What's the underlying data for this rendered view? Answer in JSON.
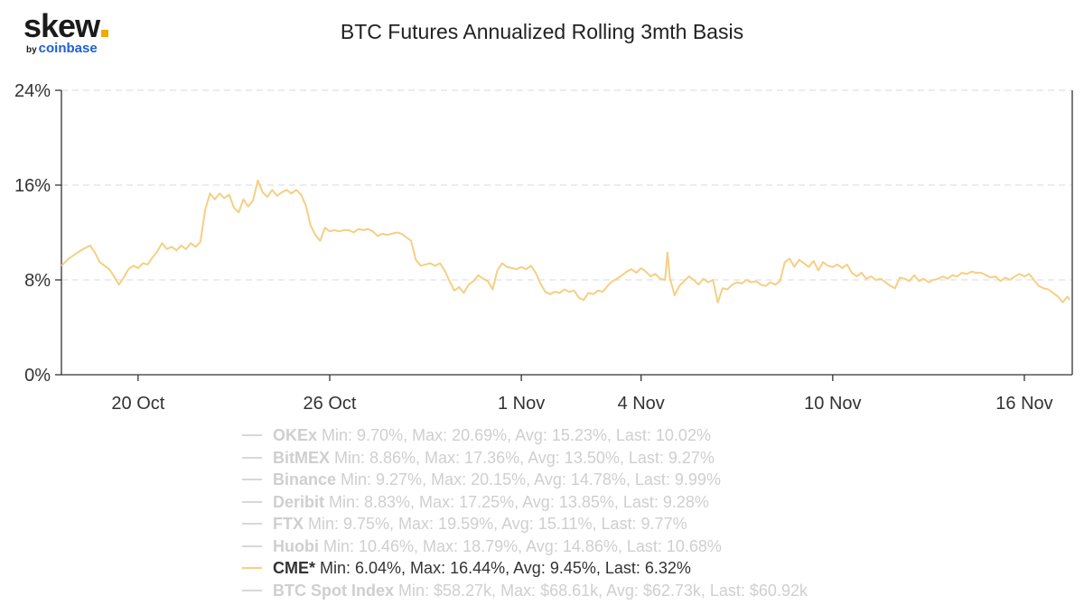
{
  "brand": {
    "word": "skew",
    "by": "by",
    "sub": "coinbase",
    "dot_color": "#f2a900"
  },
  "chart_data": {
    "type": "line",
    "title": "BTC Futures Annualized Rolling 3mth Basis",
    "xlabel": "",
    "ylabel": "",
    "ylim": [
      0,
      24
    ],
    "y_ticks": [
      "0%",
      "8%",
      "16%",
      "24%"
    ],
    "x_ticks": [
      "20 Oct",
      "26 Oct",
      "1 Nov",
      "4 Nov",
      "10 Nov",
      "16 Nov"
    ],
    "grid": true,
    "legend_position": "bottom",
    "series": [
      {
        "name": "OKEx",
        "stats": "Min: 9.70%, Max: 20.69%, Avg: 15.23%, Last: 10.02%",
        "visible": false
      },
      {
        "name": "BitMEX",
        "stats": "Min: 8.86%, Max: 17.36%, Avg: 13.50%, Last: 9.27%",
        "visible": false
      },
      {
        "name": "Binance",
        "stats": "Min: 9.27%, Max: 20.15%, Avg: 14.78%, Last: 9.99%",
        "visible": false
      },
      {
        "name": "Deribit",
        "stats": "Min: 8.83%, Max: 17.25%, Avg: 13.85%, Last: 9.28%",
        "visible": false
      },
      {
        "name": "FTX",
        "stats": "Min: 9.75%, Max: 19.59%, Avg: 15.11%, Last: 9.77%",
        "visible": false
      },
      {
        "name": "Huobi",
        "stats": "Min: 10.46%, Max: 18.79%, Avg: 14.86%, Last: 10.68%",
        "visible": false
      },
      {
        "name": "CME*",
        "stats": "Min: 6.04%, Max: 16.44%, Avg: 9.45%, Last: 6.32%",
        "visible": true,
        "color": "#f5cf83",
        "points": [
          [
            0.0,
            9.2
          ],
          [
            0.3,
            9.8
          ],
          [
            0.6,
            10.2
          ],
          [
            0.9,
            10.6
          ],
          [
            1.2,
            10.9
          ],
          [
            1.4,
            10.3
          ],
          [
            1.6,
            9.5
          ],
          [
            1.8,
            9.2
          ],
          [
            2.0,
            8.9
          ],
          [
            2.2,
            8.3
          ],
          [
            2.4,
            7.6
          ],
          [
            2.6,
            8.2
          ],
          [
            2.8,
            8.9
          ],
          [
            3.0,
            9.2
          ],
          [
            3.2,
            9.0
          ],
          [
            3.4,
            9.4
          ],
          [
            3.6,
            9.3
          ],
          [
            3.8,
            9.9
          ],
          [
            4.0,
            10.4
          ],
          [
            4.2,
            11.1
          ],
          [
            4.4,
            10.6
          ],
          [
            4.6,
            10.8
          ],
          [
            4.8,
            10.5
          ],
          [
            5.0,
            10.9
          ],
          [
            5.2,
            10.6
          ],
          [
            5.4,
            11.1
          ],
          [
            5.6,
            10.8
          ],
          [
            5.8,
            11.2
          ],
          [
            6.0,
            13.9
          ],
          [
            6.2,
            15.3
          ],
          [
            6.4,
            14.8
          ],
          [
            6.6,
            15.3
          ],
          [
            6.8,
            14.9
          ],
          [
            7.0,
            15.2
          ],
          [
            7.2,
            14.1
          ],
          [
            7.4,
            13.7
          ],
          [
            7.6,
            14.8
          ],
          [
            7.8,
            14.2
          ],
          [
            8.0,
            14.7
          ],
          [
            8.2,
            16.4
          ],
          [
            8.4,
            15.4
          ],
          [
            8.6,
            15.0
          ],
          [
            8.8,
            15.6
          ],
          [
            9.0,
            15.1
          ],
          [
            9.2,
            15.4
          ],
          [
            9.4,
            15.6
          ],
          [
            9.6,
            15.3
          ],
          [
            9.8,
            15.6
          ],
          [
            10.0,
            15.2
          ],
          [
            10.2,
            14.3
          ],
          [
            10.4,
            12.6
          ],
          [
            10.6,
            11.8
          ],
          [
            10.8,
            11.3
          ],
          [
            11.0,
            12.4
          ],
          [
            11.2,
            12.1
          ],
          [
            11.4,
            12.2
          ],
          [
            11.6,
            12.1
          ],
          [
            11.8,
            12.2
          ],
          [
            12.0,
            12.2
          ],
          [
            12.2,
            12.0
          ],
          [
            12.4,
            12.3
          ],
          [
            12.6,
            12.2
          ],
          [
            12.8,
            12.3
          ],
          [
            13.0,
            12.1
          ],
          [
            13.2,
            11.7
          ],
          [
            13.4,
            11.9
          ],
          [
            13.6,
            11.8
          ],
          [
            13.8,
            11.9
          ],
          [
            14.0,
            12.0
          ],
          [
            14.2,
            11.9
          ],
          [
            14.4,
            11.6
          ],
          [
            14.6,
            11.3
          ],
          [
            14.8,
            9.7
          ],
          [
            15.0,
            9.2
          ],
          [
            15.2,
            9.3
          ],
          [
            15.4,
            9.4
          ],
          [
            15.6,
            9.2
          ],
          [
            15.8,
            9.4
          ],
          [
            16.0,
            8.8
          ],
          [
            16.2,
            7.9
          ],
          [
            16.4,
            7.1
          ],
          [
            16.6,
            7.4
          ],
          [
            16.8,
            6.9
          ],
          [
            17.0,
            7.6
          ],
          [
            17.2,
            7.9
          ],
          [
            17.4,
            8.4
          ],
          [
            17.6,
            8.1
          ],
          [
            17.8,
            7.9
          ],
          [
            18.0,
            7.2
          ],
          [
            18.2,
            8.8
          ],
          [
            18.4,
            9.4
          ],
          [
            18.6,
            9.1
          ],
          [
            18.8,
            9.0
          ],
          [
            19.0,
            8.9
          ],
          [
            19.2,
            9.1
          ],
          [
            19.4,
            8.9
          ],
          [
            19.6,
            9.2
          ],
          [
            19.8,
            8.6
          ],
          [
            20.0,
            7.7
          ],
          [
            20.2,
            7.0
          ],
          [
            20.4,
            6.8
          ],
          [
            20.6,
            7.0
          ],
          [
            20.8,
            6.9
          ],
          [
            21.0,
            7.2
          ],
          [
            21.2,
            7.0
          ],
          [
            21.4,
            7.1
          ],
          [
            21.6,
            6.5
          ],
          [
            21.8,
            6.3
          ],
          [
            22.0,
            6.9
          ],
          [
            22.2,
            6.8
          ],
          [
            22.4,
            7.1
          ],
          [
            22.6,
            7.0
          ],
          [
            22.8,
            7.5
          ],
          [
            23.0,
            7.9
          ],
          [
            23.2,
            8.1
          ],
          [
            23.4,
            8.4
          ],
          [
            23.6,
            8.7
          ],
          [
            23.8,
            8.9
          ],
          [
            24.0,
            8.6
          ],
          [
            24.2,
            9.0
          ],
          [
            24.4,
            8.7
          ],
          [
            24.6,
            8.3
          ],
          [
            24.8,
            8.5
          ],
          [
            25.0,
            8.1
          ],
          [
            25.2,
            8.0
          ],
          [
            25.3,
            10.3
          ],
          [
            25.4,
            8.2
          ],
          [
            25.6,
            6.7
          ],
          [
            25.8,
            7.5
          ],
          [
            26.0,
            7.9
          ],
          [
            26.2,
            8.3
          ],
          [
            26.4,
            8.0
          ],
          [
            26.6,
            7.6
          ],
          [
            26.8,
            8.1
          ],
          [
            27.0,
            7.8
          ],
          [
            27.2,
            8.0
          ],
          [
            27.4,
            6.1
          ],
          [
            27.6,
            7.3
          ],
          [
            27.8,
            7.2
          ],
          [
            28.0,
            7.6
          ],
          [
            28.2,
            7.8
          ],
          [
            28.4,
            7.7
          ],
          [
            28.6,
            8.0
          ],
          [
            28.8,
            7.8
          ],
          [
            29.0,
            7.9
          ],
          [
            29.2,
            7.6
          ],
          [
            29.4,
            7.5
          ],
          [
            29.6,
            7.8
          ],
          [
            29.8,
            7.6
          ],
          [
            30.0,
            7.9
          ],
          [
            30.2,
            9.5
          ],
          [
            30.4,
            9.8
          ],
          [
            30.6,
            9.1
          ],
          [
            30.8,
            9.7
          ],
          [
            31.0,
            9.4
          ],
          [
            31.2,
            9.1
          ],
          [
            31.4,
            9.6
          ],
          [
            31.6,
            8.8
          ],
          [
            31.8,
            9.5
          ],
          [
            32.0,
            9.2
          ],
          [
            32.2,
            9.1
          ],
          [
            32.4,
            9.3
          ],
          [
            32.6,
            9.0
          ],
          [
            32.8,
            9.3
          ],
          [
            33.0,
            8.6
          ],
          [
            33.2,
            8.3
          ],
          [
            33.4,
            8.6
          ],
          [
            33.6,
            8.1
          ],
          [
            33.8,
            8.3
          ],
          [
            34.0,
            8.0
          ],
          [
            34.2,
            8.1
          ],
          [
            34.4,
            7.8
          ],
          [
            34.6,
            7.5
          ],
          [
            34.8,
            7.3
          ],
          [
            35.0,
            8.2
          ],
          [
            35.2,
            8.1
          ],
          [
            35.4,
            7.9
          ],
          [
            35.6,
            8.4
          ],
          [
            35.8,
            7.9
          ],
          [
            36.0,
            8.1
          ],
          [
            36.2,
            7.8
          ],
          [
            36.4,
            8.0
          ],
          [
            36.6,
            8.1
          ],
          [
            36.8,
            8.3
          ],
          [
            37.0,
            8.1
          ],
          [
            37.2,
            8.4
          ],
          [
            37.4,
            8.3
          ],
          [
            37.6,
            8.6
          ],
          [
            37.8,
            8.5
          ],
          [
            38.0,
            8.7
          ],
          [
            38.2,
            8.6
          ],
          [
            38.4,
            8.6
          ],
          [
            38.6,
            8.4
          ],
          [
            38.8,
            8.2
          ],
          [
            39.0,
            8.3
          ],
          [
            39.2,
            7.9
          ],
          [
            39.4,
            8.2
          ],
          [
            39.6,
            8.0
          ],
          [
            39.8,
            8.3
          ],
          [
            40.0,
            8.5
          ],
          [
            40.2,
            8.3
          ],
          [
            40.4,
            8.5
          ],
          [
            40.6,
            8.0
          ],
          [
            40.8,
            7.5
          ],
          [
            41.0,
            7.3
          ],
          [
            41.2,
            7.2
          ],
          [
            41.4,
            6.9
          ],
          [
            41.6,
            6.6
          ],
          [
            41.8,
            6.1
          ],
          [
            42.0,
            6.6
          ],
          [
            42.1,
            6.32
          ]
        ]
      },
      {
        "name": "BTC Spot Index",
        "stats": "Min: $58.27k, Max: $68.61k, Avg: $62.73k, Last: $60.92k",
        "visible": false
      }
    ],
    "x_tick_positions": [
      3.2,
      11.2,
      19.2,
      24.2,
      32.2,
      40.2
    ],
    "x_domain": [
      0,
      42.2
    ]
  }
}
